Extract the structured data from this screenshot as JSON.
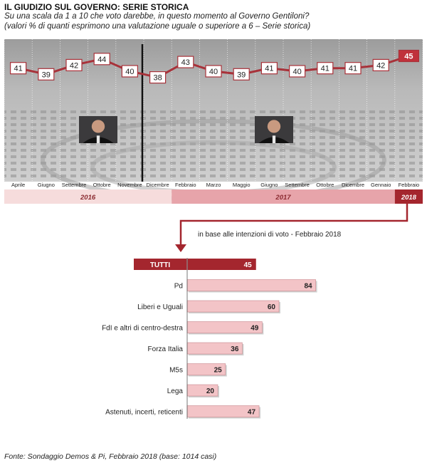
{
  "header": {
    "title": "IL GIUDIZIO SUL GOVERNO: SERIE STORICA",
    "subtitle_line1": "Su una scala da 1 a 10 che voto darebbe, in questo momento al Governo Gentiloni?",
    "subtitle_line2": "(valori % di quanti esprimono una valutazione uguale o superiore a 6 – Serie storica)"
  },
  "chart_data": [
    {
      "type": "line",
      "categories": [
        "Aprile",
        "Giugno",
        "Settembre",
        "Ottobre",
        "Novembre",
        "Dicembre",
        "Febbraio",
        "Marzo",
        "Maggio",
        "Giugno",
        "Settembre",
        "Ottobre",
        "Dicembre",
        "Gennaio",
        "Febbraio"
      ],
      "values": [
        41,
        39,
        42,
        44,
        40,
        38,
        43,
        40,
        39,
        41,
        40,
        41,
        41,
        42,
        45
      ],
      "years": [
        {
          "label": "2016",
          "from": 0,
          "to": 5,
          "color": "#f6dcdc"
        },
        {
          "label": "2017",
          "from": 6,
          "to": 13,
          "color": "#e7a4aa"
        },
        {
          "label": "2018",
          "from": 14,
          "to": 14,
          "color": "#a4262e"
        }
      ],
      "line_color": "#a8323a",
      "highlight_color": "#c0313b"
    },
    {
      "type": "bar",
      "caption": "in base alle intenzioni di voto  - Febbraio 2018",
      "categories": [
        "TUTTI",
        "Pd",
        "Liberi e Uguali",
        "FdI e altri di centro-destra",
        "Forza Italia",
        "M5s",
        "Lega",
        "Astenuti, incerti, reticenti"
      ],
      "values": [
        45,
        84,
        60,
        49,
        36,
        25,
        20,
        47
      ],
      "colors": {
        "total": "#a4262e",
        "bars": "#f3c4c7",
        "bar_border": "#c9878c"
      }
    }
  ],
  "footer": {
    "source": "Fonte: Sondaggio Demos & Pi, Febbraio 2018 (base: 1014 casi)"
  }
}
